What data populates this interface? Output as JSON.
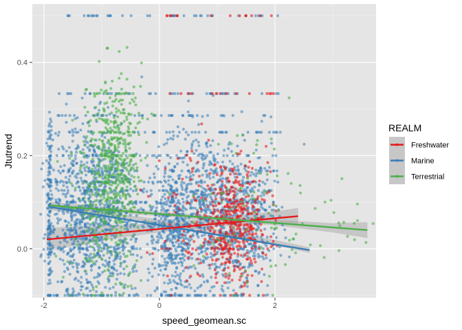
{
  "chart_data": {
    "type": "scatter",
    "title": "",
    "xlabel": "speed_geomean.sc",
    "ylabel": "Jtutrend",
    "xlim": [
      -2.2,
      3.75
    ],
    "ylim": [
      -0.105,
      0.525
    ],
    "x_ticks": [
      -2,
      0,
      2
    ],
    "x_tick_labels": [
      "-2",
      "0",
      "2"
    ],
    "y_ticks": [
      0.0,
      0.2,
      0.4
    ],
    "y_tick_labels": [
      "0.0",
      "0.2",
      "0.4"
    ],
    "grid": true,
    "panel_background": "#e5e5e5",
    "legend": {
      "title": "REALM",
      "position": "right",
      "entries": [
        "Freshwater",
        "Marine",
        "Terrestrial"
      ]
    },
    "colors": {
      "Freshwater": "#e41a1c",
      "Marine": "#377eb8",
      "Terrestrial": "#4daf4a",
      "ribbon": "#999999"
    },
    "series": [
      {
        "name": "Marine",
        "point_alpha": 0.55,
        "clusters": [
          {
            "x_center": -1.9,
            "x_sd": 0.02,
            "y_center": 0.09,
            "y_sd": 0.12,
            "count": 140
          },
          {
            "x_center": -1.3,
            "x_sd": 0.3,
            "y_center": 0.07,
            "y_sd": 0.1,
            "count": 650
          },
          {
            "x_center": -0.8,
            "x_sd": 0.3,
            "y_center": 0.06,
            "y_sd": 0.09,
            "count": 350
          },
          {
            "x_center": 0.2,
            "x_sd": 0.2,
            "y_center": 0.05,
            "y_sd": 0.08,
            "count": 420
          },
          {
            "x_center": 0.9,
            "x_sd": 0.35,
            "y_center": 0.07,
            "y_sd": 0.09,
            "count": 620
          },
          {
            "x_center": 1.6,
            "x_sd": 0.25,
            "y_center": 0.05,
            "y_sd": 0.08,
            "count": 220
          }
        ],
        "bands_y": [
          0.5,
          0.333,
          0.286,
          0.25,
          0.2,
          0.167,
          0.143,
          0.125,
          0.1,
          0.083,
          0.0
        ],
        "bands_x_range": [
          -1.8,
          2.1
        ],
        "band_points": 40,
        "fit_line": {
          "x": [
            -1.9,
            2.6
          ],
          "y": [
            0.09,
            -0.003
          ]
        },
        "ribbon": {
          "x": [
            -1.9,
            -1.0,
            0.0,
            1.0,
            2.0,
            2.6
          ],
          "lower": [
            0.083,
            0.068,
            0.051,
            0.029,
            0.007,
            -0.009
          ],
          "upper": [
            0.097,
            0.08,
            0.063,
            0.041,
            0.019,
            0.003
          ]
        }
      },
      {
        "name": "Freshwater",
        "point_alpha": 0.6,
        "clusters": [
          {
            "x_center": 1.3,
            "x_sd": 0.3,
            "y_center": 0.05,
            "y_sd": 0.06,
            "count": 420
          },
          {
            "x_center": 0.6,
            "x_sd": 0.35,
            "y_center": 0.06,
            "y_sd": 0.07,
            "count": 90
          }
        ],
        "bands_y": [
          0.5,
          0.333,
          0.0
        ],
        "bands_x_range": [
          0.0,
          2.0
        ],
        "band_points": 14,
        "fit_line": {
          "x": [
            -1.95,
            2.4
          ],
          "y": [
            0.02,
            0.07
          ]
        },
        "ribbon": {
          "x": [
            -1.95,
            -1.0,
            0.0,
            1.0,
            2.0,
            2.4
          ],
          "lower": [
            -0.005,
            0.018,
            0.035,
            0.048,
            0.055,
            0.052
          ],
          "upper": [
            0.045,
            0.05,
            0.055,
            0.068,
            0.08,
            0.088
          ]
        }
      },
      {
        "name": "Terrestrial",
        "point_alpha": 0.6,
        "clusters": [
          {
            "x_center": -0.75,
            "x_sd": 0.22,
            "y_center": 0.17,
            "y_sd": 0.1,
            "count": 480
          },
          {
            "x_center": -1.1,
            "x_sd": 0.25,
            "y_center": 0.1,
            "y_sd": 0.09,
            "count": 140
          },
          {
            "x_center": 1.5,
            "x_sd": 0.5,
            "y_center": 0.08,
            "y_sd": 0.08,
            "count": 80
          },
          {
            "x_center": 2.8,
            "x_sd": 0.45,
            "y_center": 0.06,
            "y_sd": 0.05,
            "count": 25
          }
        ],
        "bands_y": [
          0.333,
          0.25,
          0.2
        ],
        "bands_x_range": [
          -1.2,
          -0.4
        ],
        "band_points": 10,
        "fit_line": {
          "x": [
            -1.9,
            3.6
          ],
          "y": [
            0.093,
            0.04
          ]
        },
        "ribbon": {
          "x": [
            -1.9,
            -1.0,
            0.0,
            1.0,
            2.0,
            3.0,
            3.6
          ],
          "lower": [
            0.085,
            0.079,
            0.07,
            0.06,
            0.05,
            0.035,
            0.023
          ],
          "upper": [
            0.101,
            0.091,
            0.08,
            0.07,
            0.062,
            0.055,
            0.057
          ]
        }
      }
    ]
  }
}
